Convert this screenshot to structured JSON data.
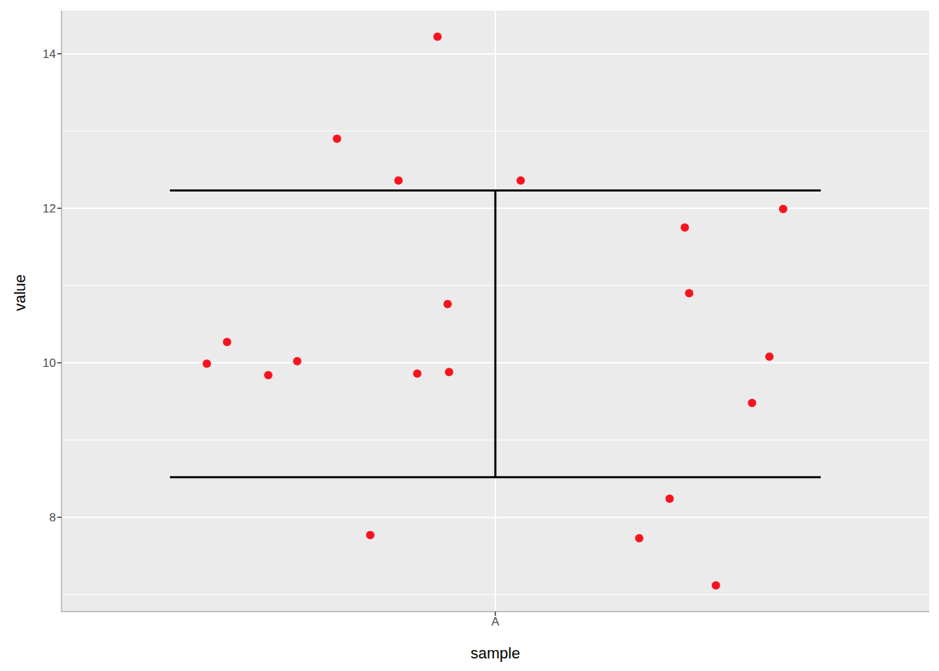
{
  "chart_data": {
    "type": "scatter",
    "x_label": "sample",
    "y_label": "value",
    "x": [
      0.601,
      0.629,
      0.686,
      0.726,
      0.781,
      0.827,
      0.866,
      0.892,
      0.92,
      0.934,
      0.936,
      1.035,
      1.199,
      1.241,
      1.262,
      1.268,
      1.305,
      1.355,
      1.379,
      1.398
    ],
    "values": [
      9.99,
      10.27,
      9.84,
      10.02,
      12.9,
      7.77,
      12.36,
      9.86,
      14.22,
      10.76,
      9.88,
      12.36,
      7.73,
      8.24,
      11.75,
      10.9,
      7.12,
      9.48,
      10.08,
      11.99
    ],
    "color": "#F8141F",
    "xlim": [
      0.4,
      1.6
    ],
    "xticks": [
      {
        "value": 1,
        "label": "A"
      }
    ],
    "ylim": [
      6.78,
      14.56
    ],
    "yticks": [
      8,
      10,
      12,
      14
    ],
    "grid": true,
    "error_bar": {
      "x": 1,
      "ymin": 8.52,
      "ymax": 12.23,
      "width": 0.9,
      "color": "#000000"
    }
  }
}
